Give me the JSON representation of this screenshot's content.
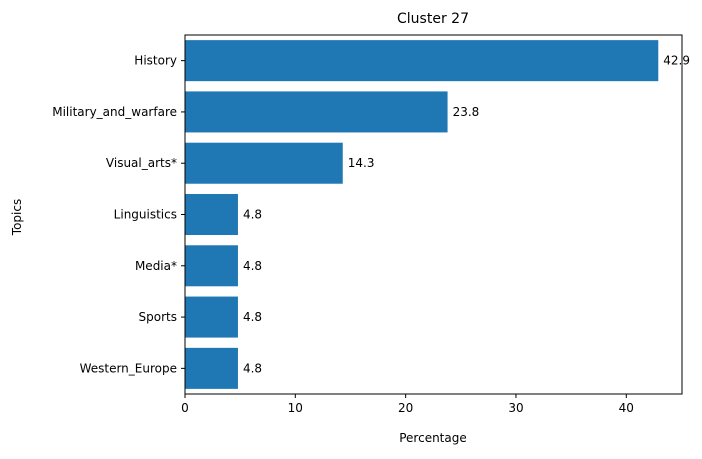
{
  "chart_data": {
    "type": "bar",
    "orientation": "horizontal",
    "title": "Cluster 27",
    "xlabel": "Percentage",
    "ylabel": "Topics",
    "categories": [
      "History",
      "Military_and_warfare",
      "Visual_arts*",
      "Linguistics",
      "Media*",
      "Sports",
      "Western_Europe"
    ],
    "values": [
      42.9,
      23.8,
      14.3,
      4.8,
      4.8,
      4.8,
      4.8
    ],
    "value_labels": [
      "42.9",
      "23.8",
      "14.3",
      "4.8",
      "4.8",
      "4.8",
      "4.8"
    ],
    "xlim": [
      0,
      45.05
    ],
    "xticks": [
      0,
      10,
      20,
      30,
      40
    ],
    "xtick_labels": [
      "0",
      "10",
      "20",
      "30",
      "40"
    ],
    "grid": false,
    "legend": "none",
    "bar_color": "#1f77b4"
  }
}
